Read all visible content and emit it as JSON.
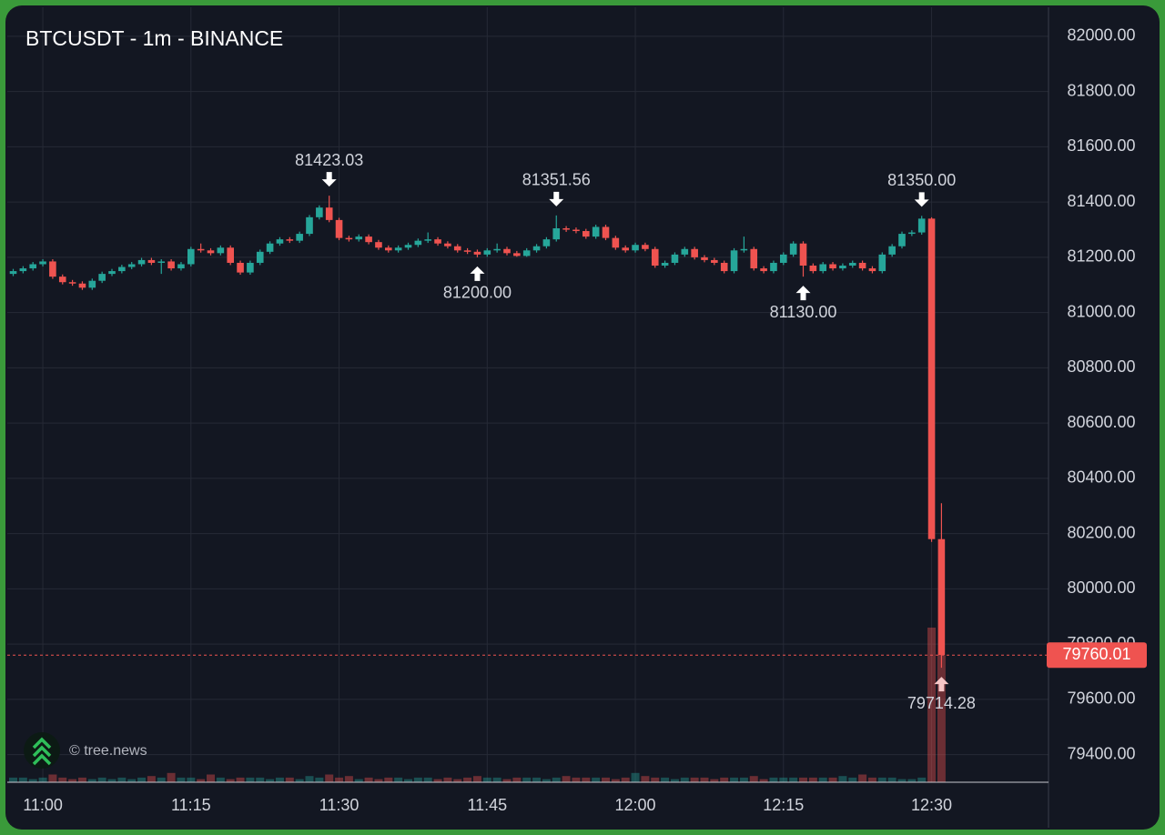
{
  "chart_data": {
    "type": "candlestick",
    "title": "BTCUSDT - 1m - BINANCE",
    "watermark": "© tree.news",
    "x": [
      "10:57",
      "10:58",
      "10:59",
      "11:00",
      "11:01",
      "11:02",
      "11:03",
      "11:04",
      "11:05",
      "11:06",
      "11:07",
      "11:08",
      "11:09",
      "11:10",
      "11:11",
      "11:12",
      "11:13",
      "11:14",
      "11:15",
      "11:16",
      "11:17",
      "11:18",
      "11:19",
      "11:20",
      "11:21",
      "11:22",
      "11:23",
      "11:24",
      "11:25",
      "11:26",
      "11:27",
      "11:28",
      "11:29",
      "11:30",
      "11:31",
      "11:32",
      "11:33",
      "11:34",
      "11:35",
      "11:36",
      "11:37",
      "11:38",
      "11:39",
      "11:40",
      "11:41",
      "11:42",
      "11:43",
      "11:44",
      "11:45",
      "11:46",
      "11:47",
      "11:48",
      "11:49",
      "11:50",
      "11:51",
      "11:52",
      "11:53",
      "11:54",
      "11:55",
      "11:56",
      "11:57",
      "11:58",
      "11:59",
      "12:00",
      "12:01",
      "12:02",
      "12:03",
      "12:04",
      "12:05",
      "12:06",
      "12:07",
      "12:08",
      "12:09",
      "12:10",
      "12:11",
      "12:12",
      "12:13",
      "12:14",
      "12:15",
      "12:16",
      "12:17",
      "12:18",
      "12:19",
      "12:20",
      "12:21",
      "12:22",
      "12:23",
      "12:24",
      "12:25",
      "12:26",
      "12:27",
      "12:28",
      "12:29",
      "12:30",
      "12:31"
    ],
    "open": [
      81140,
      81150,
      81160,
      81175,
      81185,
      81130,
      81110,
      81105,
      81090,
      81115,
      81140,
      81150,
      81165,
      81175,
      81190,
      81180,
      81185,
      81160,
      81175,
      81230,
      81225,
      81215,
      81235,
      81180,
      81145,
      81180,
      81220,
      81250,
      81265,
      81260,
      81285,
      81345,
      81380,
      81335,
      81270,
      81265,
      81275,
      81255,
      81235,
      81225,
      81235,
      81245,
      81260,
      81265,
      81250,
      81240,
      81225,
      81220,
      81210,
      81225,
      81230,
      81215,
      81205,
      81225,
      81240,
      81265,
      81305,
      81300,
      81295,
      81275,
      81310,
      81270,
      81235,
      81225,
      81245,
      81230,
      81170,
      81180,
      81210,
      81230,
      81200,
      81190,
      81180,
      81150,
      81225,
      81230,
      81160,
      81150,
      81180,
      81210,
      81250,
      81170,
      81150,
      81175,
      81160,
      81170,
      81180,
      81160,
      81150,
      81210,
      81240,
      81285,
      81290,
      81340,
      80180
    ],
    "high": [
      81158,
      81168,
      81183,
      81193,
      81193,
      81138,
      81118,
      81113,
      81123,
      81148,
      81158,
      81173,
      81183,
      81198,
      81198,
      81193,
      81193,
      81183,
      81238,
      81250,
      81233,
      81243,
      81243,
      81188,
      81188,
      81228,
      81258,
      81273,
      81273,
      81293,
      81353,
      81388,
      81423.03,
      81343,
      81278,
      81283,
      81283,
      81263,
      81243,
      81243,
      81253,
      81268,
      81290,
      81273,
      81258,
      81248,
      81233,
      81228,
      81233,
      81250,
      81238,
      81223,
      81233,
      81248,
      81273,
      81351.56,
      81313,
      81308,
      81303,
      81318,
      81318,
      81278,
      81243,
      81253,
      81253,
      81238,
      81188,
      81218,
      81238,
      81238,
      81208,
      81198,
      81188,
      81233,
      81275,
      81238,
      81168,
      81188,
      81218,
      81258,
      81258,
      81178,
      81183,
      81183,
      81178,
      81188,
      81188,
      81168,
      81218,
      81248,
      81293,
      81298,
      81350,
      81345,
      80310
    ],
    "low": [
      81132,
      81142,
      81152,
      81167,
      81122,
      81102,
      81097,
      81082,
      81082,
      81107,
      81132,
      81142,
      81157,
      81167,
      81172,
      81140,
      81152,
      81152,
      81167,
      81217,
      81207,
      81207,
      81172,
      81137,
      81137,
      81172,
      81212,
      81242,
      81252,
      81252,
      81277,
      81337,
      81327,
      81262,
      81257,
      81257,
      81247,
      81227,
      81217,
      81217,
      81227,
      81237,
      81252,
      81242,
      81232,
      81217,
      81212,
      81200,
      81202,
      81217,
      81207,
      81202,
      81202,
      81217,
      81232,
      81257,
      81292,
      81287,
      81267,
      81267,
      81262,
      81227,
      81217,
      81217,
      81222,
      81162,
      81162,
      81172,
      81202,
      81192,
      81182,
      81172,
      81142,
      81142,
      81217,
      81152,
      81142,
      81142,
      81172,
      81202,
      81130,
      81142,
      81142,
      81152,
      81152,
      81162,
      81152,
      81142,
      81142,
      81202,
      81232,
      81277,
      81282,
      80170,
      79714.28
    ],
    "close": [
      81150,
      81160,
      81175,
      81185,
      81130,
      81110,
      81105,
      81090,
      81115,
      81140,
      81150,
      81165,
      81175,
      81190,
      81180,
      81185,
      81160,
      81175,
      81230,
      81225,
      81215,
      81235,
      81180,
      81145,
      81180,
      81220,
      81250,
      81265,
      81260,
      81285,
      81345,
      81380,
      81335,
      81270,
      81265,
      81275,
      81255,
      81235,
      81225,
      81235,
      81245,
      81260,
      81265,
      81250,
      81240,
      81225,
      81220,
      81210,
      81225,
      81230,
      81215,
      81205,
      81225,
      81240,
      81265,
      81305,
      81300,
      81295,
      81275,
      81310,
      81270,
      81235,
      81225,
      81245,
      81230,
      81170,
      81180,
      81210,
      81230,
      81200,
      81190,
      81180,
      81150,
      81225,
      81230,
      81160,
      81150,
      81180,
      81210,
      81250,
      81170,
      81150,
      81175,
      81160,
      81170,
      81180,
      81160,
      81150,
      81210,
      81240,
      81285,
      81290,
      81340,
      80180,
      79760.01
    ],
    "volume": [
      3,
      3,
      2,
      3,
      5,
      3,
      2,
      3,
      2,
      3,
      2,
      3,
      2,
      3,
      4,
      3,
      6,
      3,
      3,
      2,
      5,
      3,
      2,
      3,
      3,
      3,
      2,
      3,
      3,
      2,
      4,
      3,
      5,
      3,
      4,
      2,
      3,
      2,
      3,
      3,
      2,
      3,
      3,
      2,
      3,
      2,
      3,
      4,
      3,
      3,
      2,
      3,
      3,
      3,
      2,
      3,
      4,
      3,
      3,
      3,
      3,
      2,
      3,
      6,
      4,
      3,
      3,
      2,
      3,
      3,
      3,
      2,
      3,
      3,
      3,
      4,
      2,
      3,
      3,
      3,
      3,
      3,
      3,
      3,
      4,
      3,
      5,
      3,
      3,
      3,
      2,
      2,
      3,
      100,
      82
    ],
    "vlim": [
      0,
      100
    ],
    "up_color": "#26a69a",
    "down_color": "#ef5350",
    "ylim": [
      79300,
      82105
    ],
    "yticks": [
      {
        "value": 79400,
        "label": "79400.00"
      },
      {
        "value": 79600,
        "label": "79600.00"
      },
      {
        "value": 79800,
        "label": "79800.00"
      },
      {
        "value": 80000,
        "label": "80000.00"
      },
      {
        "value": 80200,
        "label": "80200.00"
      },
      {
        "value": 80400,
        "label": "80400.00"
      },
      {
        "value": 80600,
        "label": "80600.00"
      },
      {
        "value": 80800,
        "label": "80800.00"
      },
      {
        "value": 81000,
        "label": "81000.00"
      },
      {
        "value": 81200,
        "label": "81200.00"
      },
      {
        "value": 81400,
        "label": "81400.00"
      },
      {
        "value": 81600,
        "label": "81600.00"
      },
      {
        "value": 81800,
        "label": "81800.00"
      },
      {
        "value": 82000,
        "label": "82000.00"
      }
    ],
    "xticks": [
      "11:00",
      "11:15",
      "11:30",
      "11:45",
      "12:00",
      "12:15",
      "12:30"
    ],
    "grid": true,
    "markers": [
      {
        "x": "11:29",
        "side": "high",
        "value": 81423.03,
        "label": "81423.03"
      },
      {
        "x": "11:44",
        "side": "low",
        "value": 81200,
        "label": "81200.00"
      },
      {
        "x": "11:52",
        "side": "high",
        "value": 81351.56,
        "label": "81351.56"
      },
      {
        "x": "12:17",
        "side": "low",
        "value": 81130,
        "label": "81130.00"
      },
      {
        "x": "12:29",
        "side": "high",
        "value": 81350,
        "label": "81350.00"
      },
      {
        "x": "12:31",
        "side": "low",
        "value": 79714.28,
        "label": "79714.28"
      }
    ],
    "last_price": {
      "value": 79760.01,
      "label": "79760.01"
    }
  }
}
